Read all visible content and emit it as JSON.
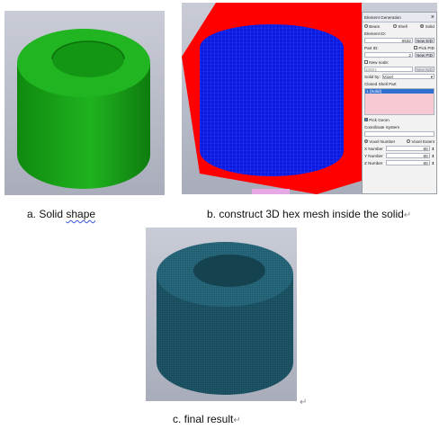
{
  "captions": {
    "a": "a. Solid shape",
    "a_prefix": "a. Solid ",
    "a_underlined": "shape",
    "b": "b. construct 3D hex mesh inside the solid",
    "c": "c. final result"
  },
  "return_mark": "↵",
  "panel": {
    "title": "Element Generation",
    "close": "×",
    "type_options": [
      "Beam",
      "Shell",
      "Solid"
    ],
    "selected_type": "Solid",
    "element_id_label": "Element ID:",
    "element_id_value": "6532",
    "new_eid_label": "New EID",
    "part_id_label": "Part ID:",
    "pick_pid_label": "Pick PID",
    "part_id_value": "2",
    "new_pid_label": "New PID",
    "new_node_label": "New node:",
    "new_node_value": "10801",
    "new_nid_label": "New NID",
    "solid_by_label": "Solid by:",
    "solid_by_value": "Voxel",
    "closed_shell_label": "Closed Shell Part",
    "closed_shell_item": "1 (Solid)",
    "pick_geom_label": "Pick Geom",
    "coord_system_label": "Coordinate System",
    "voxel_options": [
      "Voxel Number",
      "Voxel Extent"
    ],
    "selected_voxel": "Voxel Number",
    "x_label": "X Number",
    "x_value": "80",
    "y_label": "Y Number",
    "y_value": "80",
    "z_label": "Z Number",
    "z_value": "80"
  },
  "colors": {
    "solid_green": "#1aa61a",
    "mesh_red": "#ff0000",
    "mesh_blue": "#0a1ae0",
    "final_teal": "#1f5a6e",
    "selection": "#2f6fd0"
  }
}
